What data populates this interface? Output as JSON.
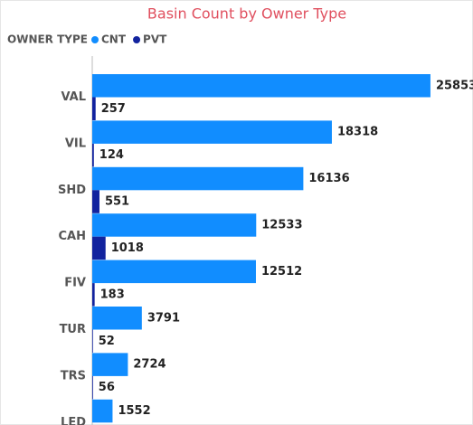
{
  "chart_data": {
    "type": "bar",
    "orientation": "horizontal",
    "title": "Basin Count by Owner Type",
    "legend_title": "OWNER TYPE",
    "categories": [
      "VAL",
      "VIL",
      "SHD",
      "CAH",
      "FIV",
      "TUR",
      "TRS",
      "LED"
    ],
    "series": [
      {
        "name": "CNT",
        "color": "#118dff",
        "values": [
          25853,
          18318,
          16136,
          12533,
          12512,
          3791,
          2724,
          1552
        ]
      },
      {
        "name": "PVT",
        "color": "#12239e",
        "values": [
          257,
          124,
          551,
          1018,
          183,
          52,
          56,
          null
        ]
      }
    ],
    "xlim": [
      0,
      28000
    ],
    "legend_position": "top-left"
  }
}
